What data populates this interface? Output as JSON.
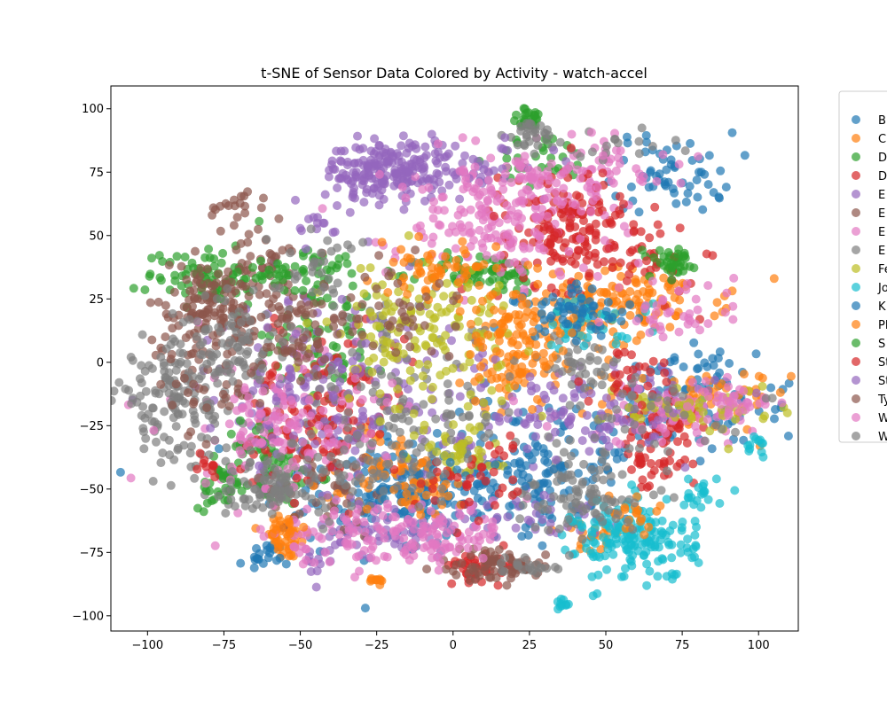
{
  "chart_data": {
    "type": "scatter",
    "title": "t-SNE of Sensor Data Colored by Activity - watch-accel",
    "xlabel": "",
    "ylabel": "",
    "xlim": [
      -112,
      113
    ],
    "ylim": [
      -106,
      109
    ],
    "xticks": [
      -100,
      -75,
      -50,
      -25,
      0,
      25,
      50,
      75,
      100
    ],
    "yticks": [
      -100,
      -75,
      -50,
      -25,
      0,
      25,
      50,
      75,
      100
    ],
    "xtick_labels": [
      "−100",
      "−75",
      "−50",
      "−25",
      "0",
      "25",
      "50",
      "75",
      "100"
    ],
    "ytick_labels": [
      "−100",
      "−75",
      "−50",
      "−25",
      "0",
      "25",
      "50",
      "75",
      "100"
    ],
    "grid": false,
    "legend_position": "right, outside (clipped)",
    "marker_alpha": 0.7,
    "series": [
      {
        "name": "B",
        "color": "#1f77b4",
        "clusters": [
          [
            -20,
            -50,
            22,
            14,
            120
          ],
          [
            10,
            -55,
            25,
            10,
            100
          ],
          [
            65,
            -20,
            25,
            10,
            90
          ],
          [
            72,
            75,
            10,
            8,
            60
          ],
          [
            -62,
            -77,
            4,
            3,
            12
          ],
          [
            80,
            -5,
            10,
            5,
            30
          ],
          [
            35,
            -45,
            12,
            8,
            40
          ]
        ]
      },
      {
        "name": "C",
        "color": "#ff7f0e",
        "clusters": [
          [
            60,
            25,
            15,
            6,
            110
          ],
          [
            35,
            15,
            12,
            8,
            70
          ],
          [
            80,
            -15,
            15,
            6,
            60
          ],
          [
            -55,
            -70,
            4,
            4,
            40
          ],
          [
            -20,
            -40,
            8,
            6,
            40
          ],
          [
            20,
            -5,
            6,
            6,
            40
          ],
          [
            45,
            -70,
            5,
            4,
            20
          ],
          [
            -25,
            -86,
            2,
            1,
            6
          ]
        ]
      },
      {
        "name": "D",
        "color": "#2ca02c",
        "clusters": [
          [
            -80,
            35,
            10,
            6,
            80
          ],
          [
            -60,
            -45,
            8,
            6,
            50
          ],
          [
            10,
            35,
            10,
            4,
            70
          ],
          [
            25,
            96,
            3,
            2,
            25
          ],
          [
            74,
            39,
            3,
            2,
            20
          ],
          [
            30,
            80,
            8,
            5,
            30
          ],
          [
            -40,
            10,
            10,
            12,
            60
          ]
        ]
      },
      {
        "name": "D",
        "color": "#d62728",
        "clusters": [
          [
            35,
            50,
            10,
            10,
            100
          ],
          [
            10,
            -80,
            6,
            3,
            40
          ],
          [
            65,
            -40,
            6,
            6,
            40
          ],
          [
            70,
            -25,
            6,
            4,
            30
          ],
          [
            -40,
            -10,
            15,
            15,
            80
          ],
          [
            60,
            40,
            10,
            8,
            40
          ]
        ]
      },
      {
        "name": "E",
        "color": "#9467bd",
        "clusters": [
          [
            -22,
            75,
            10,
            6,
            180
          ],
          [
            -30,
            -10,
            25,
            20,
            150
          ],
          [
            50,
            -15,
            20,
            10,
            70
          ],
          [
            -20,
            -67,
            12,
            5,
            50
          ],
          [
            30,
            -60,
            10,
            6,
            30
          ],
          [
            -45,
            -80,
            3,
            3,
            12
          ]
        ]
      },
      {
        "name": "E",
        "color": "#8c564b",
        "clusters": [
          [
            -80,
            20,
            10,
            10,
            140
          ],
          [
            -60,
            35,
            6,
            8,
            50
          ],
          [
            10,
            -80,
            8,
            4,
            40
          ],
          [
            -70,
            60,
            5,
            4,
            20
          ],
          [
            -40,
            -50,
            10,
            10,
            40
          ]
        ]
      },
      {
        "name": "E",
        "color": "#e377c2",
        "clusters": [
          [
            15,
            55,
            18,
            12,
            170
          ],
          [
            -60,
            -20,
            15,
            15,
            80
          ],
          [
            -40,
            -70,
            15,
            6,
            60
          ],
          [
            75,
            -20,
            20,
            6,
            70
          ],
          [
            50,
            75,
            10,
            6,
            40
          ],
          [
            5,
            -65,
            10,
            5,
            40
          ]
        ]
      },
      {
        "name": "E",
        "color": "#7f7f7f",
        "clusters": [
          [
            -90,
            -15,
            10,
            12,
            160
          ],
          [
            -20,
            -20,
            20,
            20,
            140
          ],
          [
            40,
            -50,
            10,
            8,
            60
          ],
          [
            40,
            0,
            8,
            5,
            40
          ],
          [
            25,
            90,
            4,
            3,
            25
          ],
          [
            -60,
            -50,
            6,
            4,
            30
          ],
          [
            50,
            85,
            10,
            3,
            20
          ],
          [
            -65,
            5,
            10,
            8,
            40
          ]
        ]
      },
      {
        "name": "Fe",
        "color": "#bcbd22",
        "clusters": [
          [
            -10,
            10,
            15,
            15,
            160
          ],
          [
            0,
            -35,
            8,
            5,
            40
          ],
          [
            80,
            -18,
            15,
            5,
            50
          ]
        ]
      },
      {
        "name": "Jo",
        "color": "#17becf",
        "clusters": [
          [
            60,
            -70,
            10,
            8,
            170
          ],
          [
            80,
            -52,
            4,
            4,
            20
          ],
          [
            100,
            -35,
            2,
            3,
            12
          ],
          [
            36,
            -95,
            1,
            1.5,
            10
          ],
          [
            45,
            15,
            10,
            5,
            40
          ]
        ]
      },
      {
        "name": "K",
        "color": "#1f77b4",
        "clusters": [
          [
            40,
            20,
            10,
            5,
            60
          ],
          [
            -10,
            -50,
            10,
            5,
            40
          ],
          [
            25,
            -40,
            5,
            5,
            20
          ],
          [
            -62,
            -77,
            3,
            2,
            10
          ]
        ]
      },
      {
        "name": "Pl",
        "color": "#ff7f0e",
        "clusters": [
          [
            -5,
            35,
            10,
            6,
            60
          ],
          [
            20,
            10,
            10,
            10,
            60
          ],
          [
            -15,
            -50,
            10,
            5,
            40
          ],
          [
            60,
            -60,
            5,
            5,
            20
          ],
          [
            -55,
            -65,
            3,
            3,
            15
          ],
          [
            -25,
            -86,
            1,
            1,
            4
          ]
        ]
      },
      {
        "name": "S",
        "color": "#2ca02c",
        "clusters": [
          [
            -75,
            -50,
            5,
            4,
            30
          ],
          [
            -50,
            35,
            10,
            5,
            50
          ],
          [
            -65,
            -30,
            5,
            5,
            20
          ],
          [
            70,
            40,
            4,
            3,
            20
          ]
        ]
      },
      {
        "name": "St",
        "color": "#d62728",
        "clusters": [
          [
            40,
            60,
            10,
            8,
            60
          ],
          [
            -50,
            -30,
            10,
            10,
            60
          ],
          [
            10,
            -45,
            10,
            8,
            40
          ],
          [
            -80,
            -40,
            3,
            3,
            10
          ],
          [
            60,
            -5,
            8,
            6,
            30
          ]
        ]
      },
      {
        "name": "St",
        "color": "#9467bd",
        "clusters": [
          [
            -50,
            -15,
            10,
            15,
            60
          ],
          [
            0,
            78,
            15,
            5,
            60
          ],
          [
            40,
            -25,
            15,
            5,
            40
          ],
          [
            -45,
            55,
            3,
            5,
            12
          ]
        ]
      },
      {
        "name": "Ty",
        "color": "#8c564b",
        "clusters": [
          [
            -50,
            10,
            10,
            10,
            60
          ],
          [
            20,
            -80,
            6,
            3,
            30
          ],
          [
            -80,
            -10,
            8,
            8,
            30
          ],
          [
            -20,
            20,
            10,
            10,
            40
          ]
        ]
      },
      {
        "name": "W",
        "color": "#e377c2",
        "clusters": [
          [
            25,
            70,
            12,
            8,
            80
          ],
          [
            -50,
            -30,
            15,
            10,
            60
          ],
          [
            75,
            20,
            10,
            8,
            40
          ],
          [
            -15,
            -65,
            10,
            6,
            40
          ],
          [
            -10,
            -75,
            10,
            3,
            30
          ],
          [
            -60,
            -20,
            6,
            6,
            20
          ],
          [
            90,
            -15,
            8,
            4,
            30
          ]
        ]
      },
      {
        "name": "W",
        "color": "#7f7f7f",
        "clusters": [
          [
            -60,
            -50,
            10,
            5,
            50
          ],
          [
            -30,
            -40,
            15,
            10,
            60
          ],
          [
            45,
            -55,
            10,
            6,
            40
          ],
          [
            60,
            -20,
            15,
            8,
            40
          ],
          [
            -45,
            40,
            8,
            8,
            30
          ],
          [
            -75,
            10,
            8,
            8,
            40
          ],
          [
            25,
            -80,
            5,
            2,
            20
          ]
        ]
      }
    ]
  }
}
